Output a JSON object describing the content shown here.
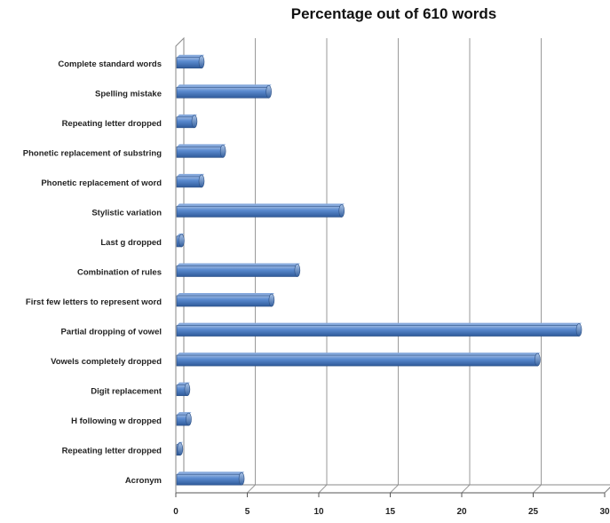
{
  "chart_data": {
    "type": "bar",
    "orientation": "horizontal",
    "title": "Percentage out of 610 words",
    "categories": [
      "Complete standard words",
      "Spelling mistake",
      "Repeating letter dropped",
      "Phonetic replacement of substring",
      "Phonetic replacement of word",
      "Stylistic variation",
      "Last g dropped",
      "Combination of rules",
      "First few letters to represent word",
      "Partial dropping of vowel",
      "Vowels completely dropped",
      "Digit replacement",
      "H following w dropped",
      "Repeating letter dropped",
      "Acronym"
    ],
    "values": [
      1.8,
      6.5,
      1.3,
      3.3,
      1.8,
      11.6,
      0.4,
      8.5,
      6.7,
      28.2,
      25.3,
      0.8,
      0.9,
      0.3,
      4.6
    ],
    "xlabel": "",
    "ylabel": "",
    "xlim": [
      0,
      30
    ],
    "xticks": [
      "0",
      "5",
      "10",
      "15",
      "20",
      "25",
      "30"
    ],
    "grid": true,
    "bar_color": "#4f81bd"
  }
}
